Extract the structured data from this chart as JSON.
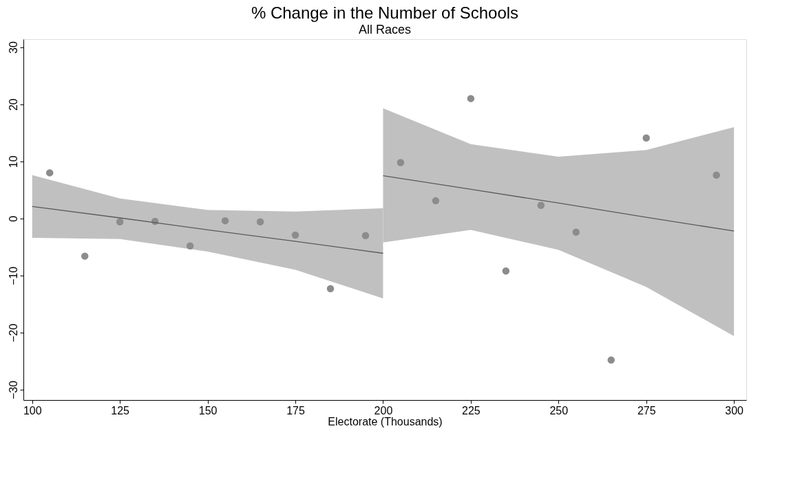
{
  "chart_data": {
    "type": "scatter",
    "title": "% Change in the Number of Schools",
    "subtitle": "All Races",
    "xlabel": "Electorate (Thousands)",
    "xlim": [
      97.5,
      303.5
    ],
    "xticks": [
      100,
      125,
      150,
      175,
      200,
      225,
      250,
      275,
      300
    ],
    "ylim": [
      -31.8,
      31.4
    ],
    "yticks": [
      -30,
      -20,
      -10,
      0,
      10,
      20,
      30
    ],
    "grid": false,
    "series": [
      {
        "marker": "circle",
        "color": "#8c8c8c",
        "x": [
          105,
          115,
          125,
          135,
          145,
          155,
          165,
          175,
          185,
          195,
          205,
          215,
          225,
          235,
          245,
          255,
          265,
          275,
          295
        ],
        "values": [
          8.0,
          -6.6,
          -0.6,
          -0.5,
          -4.8,
          -0.4,
          -0.6,
          -2.9,
          -12.3,
          -3.0,
          9.8,
          3.1,
          21.0,
          -9.2,
          2.3,
          -2.4,
          -24.8,
          14.1,
          7.6
        ]
      },
      {
        "type": "line",
        "color": "#5a5a5a",
        "x": [
          100,
          125,
          150,
          175,
          200
        ],
        "values": [
          2.1,
          0.1,
          -2.0,
          -4.0,
          -6.1
        ],
        "lower": [
          -3.4,
          -3.6,
          -5.8,
          -9.0,
          -14.0
        ],
        "upper": [
          7.6,
          3.5,
          1.5,
          1.2,
          1.8
        ]
      },
      {
        "type": "line",
        "color": "#5a5a5a",
        "x": [
          200,
          225,
          250,
          275,
          300
        ],
        "values": [
          7.5,
          5.1,
          2.7,
          0.2,
          -2.2
        ],
        "lower": [
          -4.2,
          -2.0,
          -5.5,
          -12.0,
          -20.6
        ],
        "upper": [
          19.3,
          13.0,
          10.8,
          12.0,
          16.0
        ]
      }
    ]
  }
}
